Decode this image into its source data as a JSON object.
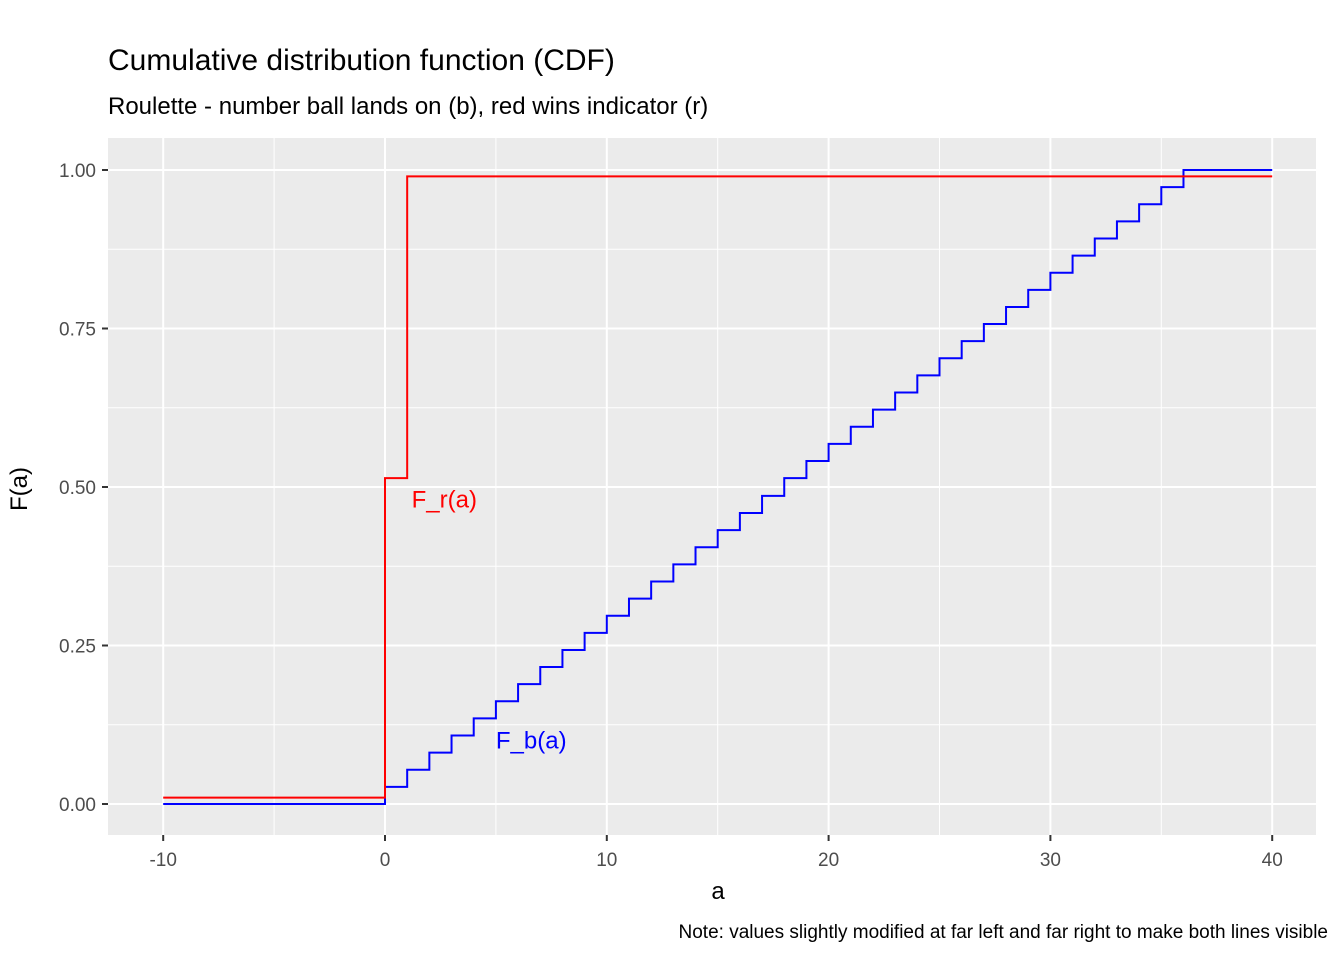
{
  "title": "Cumulative distribution function (CDF)",
  "subtitle": "Roulette - number ball lands on (b), red wins indicator (r)",
  "caption": "Note: values slightly modified at far left and far right to make both lines visible",
  "xlabel": "a",
  "ylabel": "F(a)",
  "colors": {
    "panel": "#EBEBEB",
    "grid": "#FFFFFF",
    "F_b": "#0000FF",
    "F_r": "#FF0000"
  },
  "chart_data": {
    "type": "line",
    "step": true,
    "title": "Cumulative distribution function (CDF)",
    "subtitle": "Roulette - number ball lands on (b), red wins indicator (r)",
    "xlabel": "a",
    "ylabel": "F(a)",
    "xlim": [
      -12.5,
      42.5
    ],
    "ylim": [
      -0.05,
      1.05
    ],
    "x_ticks": [
      -10,
      0,
      10,
      20,
      30,
      40
    ],
    "y_ticks": [
      0.0,
      0.25,
      0.5,
      0.75,
      1.0
    ],
    "x_tick_labels": [
      "-10",
      "0",
      "10",
      "20",
      "30",
      "40"
    ],
    "y_tick_labels": [
      "0.00",
      "0.25",
      "0.50",
      "0.75",
      "1.00"
    ],
    "grid": true,
    "legend": "none",
    "annotations": [
      {
        "text": "F_r(a)",
        "x": 1.2,
        "y": 0.48,
        "color": "#FF0000"
      },
      {
        "text": "F_b(a)",
        "x": 5.0,
        "y": 0.1,
        "color": "#0000FF"
      }
    ],
    "series": [
      {
        "name": "F_b(a)",
        "color": "#0000FF",
        "x": [
          -10,
          0,
          1,
          2,
          3,
          4,
          5,
          6,
          7,
          8,
          9,
          10,
          11,
          12,
          13,
          14,
          15,
          16,
          17,
          18,
          19,
          20,
          21,
          22,
          23,
          24,
          25,
          26,
          27,
          28,
          29,
          30,
          31,
          32,
          33,
          34,
          35,
          36,
          40
        ],
        "y": [
          0.0,
          0.027,
          0.054,
          0.081,
          0.108,
          0.135,
          0.162,
          0.189,
          0.216,
          0.243,
          0.27,
          0.297,
          0.324,
          0.351,
          0.378,
          0.405,
          0.432,
          0.459,
          0.486,
          0.514,
          0.541,
          0.568,
          0.595,
          0.622,
          0.649,
          0.676,
          0.703,
          0.73,
          0.757,
          0.784,
          0.811,
          0.838,
          0.865,
          0.892,
          0.919,
          0.946,
          0.973,
          1.0,
          1.0
        ]
      },
      {
        "name": "F_r(a)",
        "color": "#FF0000",
        "x": [
          -10,
          0,
          1,
          40
        ],
        "y": [
          0.01,
          0.514,
          0.99,
          0.99
        ]
      }
    ]
  }
}
